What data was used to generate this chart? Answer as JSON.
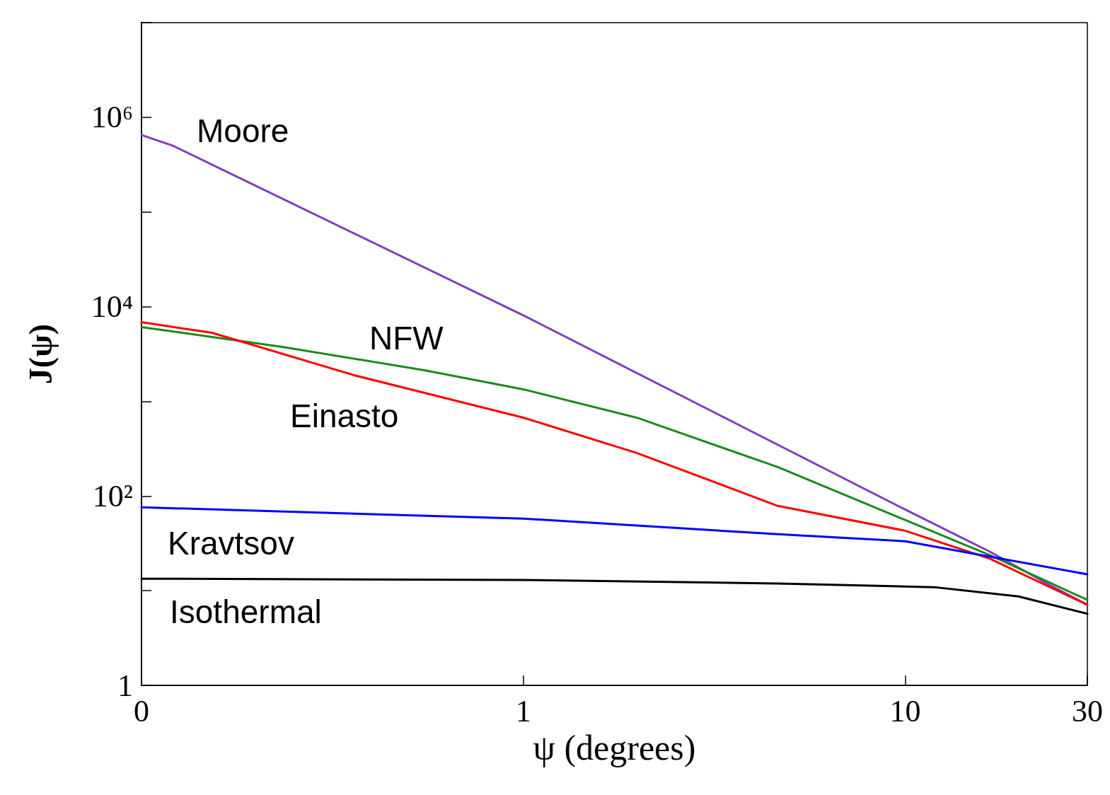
{
  "chart_data": {
    "type": "line",
    "xlabel": "ψ (degrees)",
    "ylabel": "J(ψ)",
    "log": "xy",
    "grid": false,
    "marker": "none",
    "line_style": "solid",
    "xlim": [
      0.1,
      30
    ],
    "xticks": [
      {
        "value": 0.1,
        "label": "0"
      },
      1,
      10,
      30
    ],
    "ylim": [
      1,
      10000000
    ],
    "yticks": [
      {
        "value": 1,
        "label": "1"
      },
      {
        "value": 10,
        "label": null
      },
      {
        "value": 100,
        "label": "10²"
      },
      {
        "value": 1000,
        "label": null
      },
      {
        "value": 10000,
        "label": "10⁴"
      },
      {
        "value": 100000,
        "label": null
      },
      {
        "value": 1000000,
        "label": "10⁶"
      },
      {
        "value": 10000000,
        "label": null
      }
    ],
    "series": [
      {
        "color": "#7f3fbf",
        "x": [
          0.1,
          0.121,
          1,
          10,
          16.7,
          23.5,
          30
        ],
        "values": [
          650000,
          500000,
          8100,
          72,
          25.7,
          11.9,
          7.1
        ]
      },
      {
        "color": "#1a8a1a",
        "x": [
          0.1,
          0.234,
          0.551,
          1,
          1.98,
          4.64,
          10,
          16.7,
          30
        ],
        "values": [
          6080,
          3760,
          2130,
          1340,
          673,
          202,
          55.8,
          23.6,
          8.0
        ]
      },
      {
        "color": "#ff0000",
        "x": [
          0.1,
          0.153,
          0.36,
          1,
          1.98,
          4.64,
          10,
          16.7,
          30
        ],
        "values": [
          6850,
          5300,
          1890,
          673,
          285,
          78.6,
          43,
          21.7,
          7.1
        ]
      },
      {
        "color": "#0000ff",
        "x": [
          0.1,
          1,
          4.64,
          10,
          30
        ],
        "values": [
          76,
          57.7,
          39.5,
          33.3,
          14.9
        ]
      },
      {
        "color": "#000000",
        "x": [
          0.1,
          1,
          4.64,
          11.9,
          19.8,
          30
        ],
        "values": [
          13.4,
          13.0,
          11.9,
          10.9,
          8.7,
          5.7
        ]
      }
    ],
    "annotations": [
      "Moore",
      "NFW",
      "Einasto",
      "Kravtsov",
      "Isothermal"
    ]
  }
}
